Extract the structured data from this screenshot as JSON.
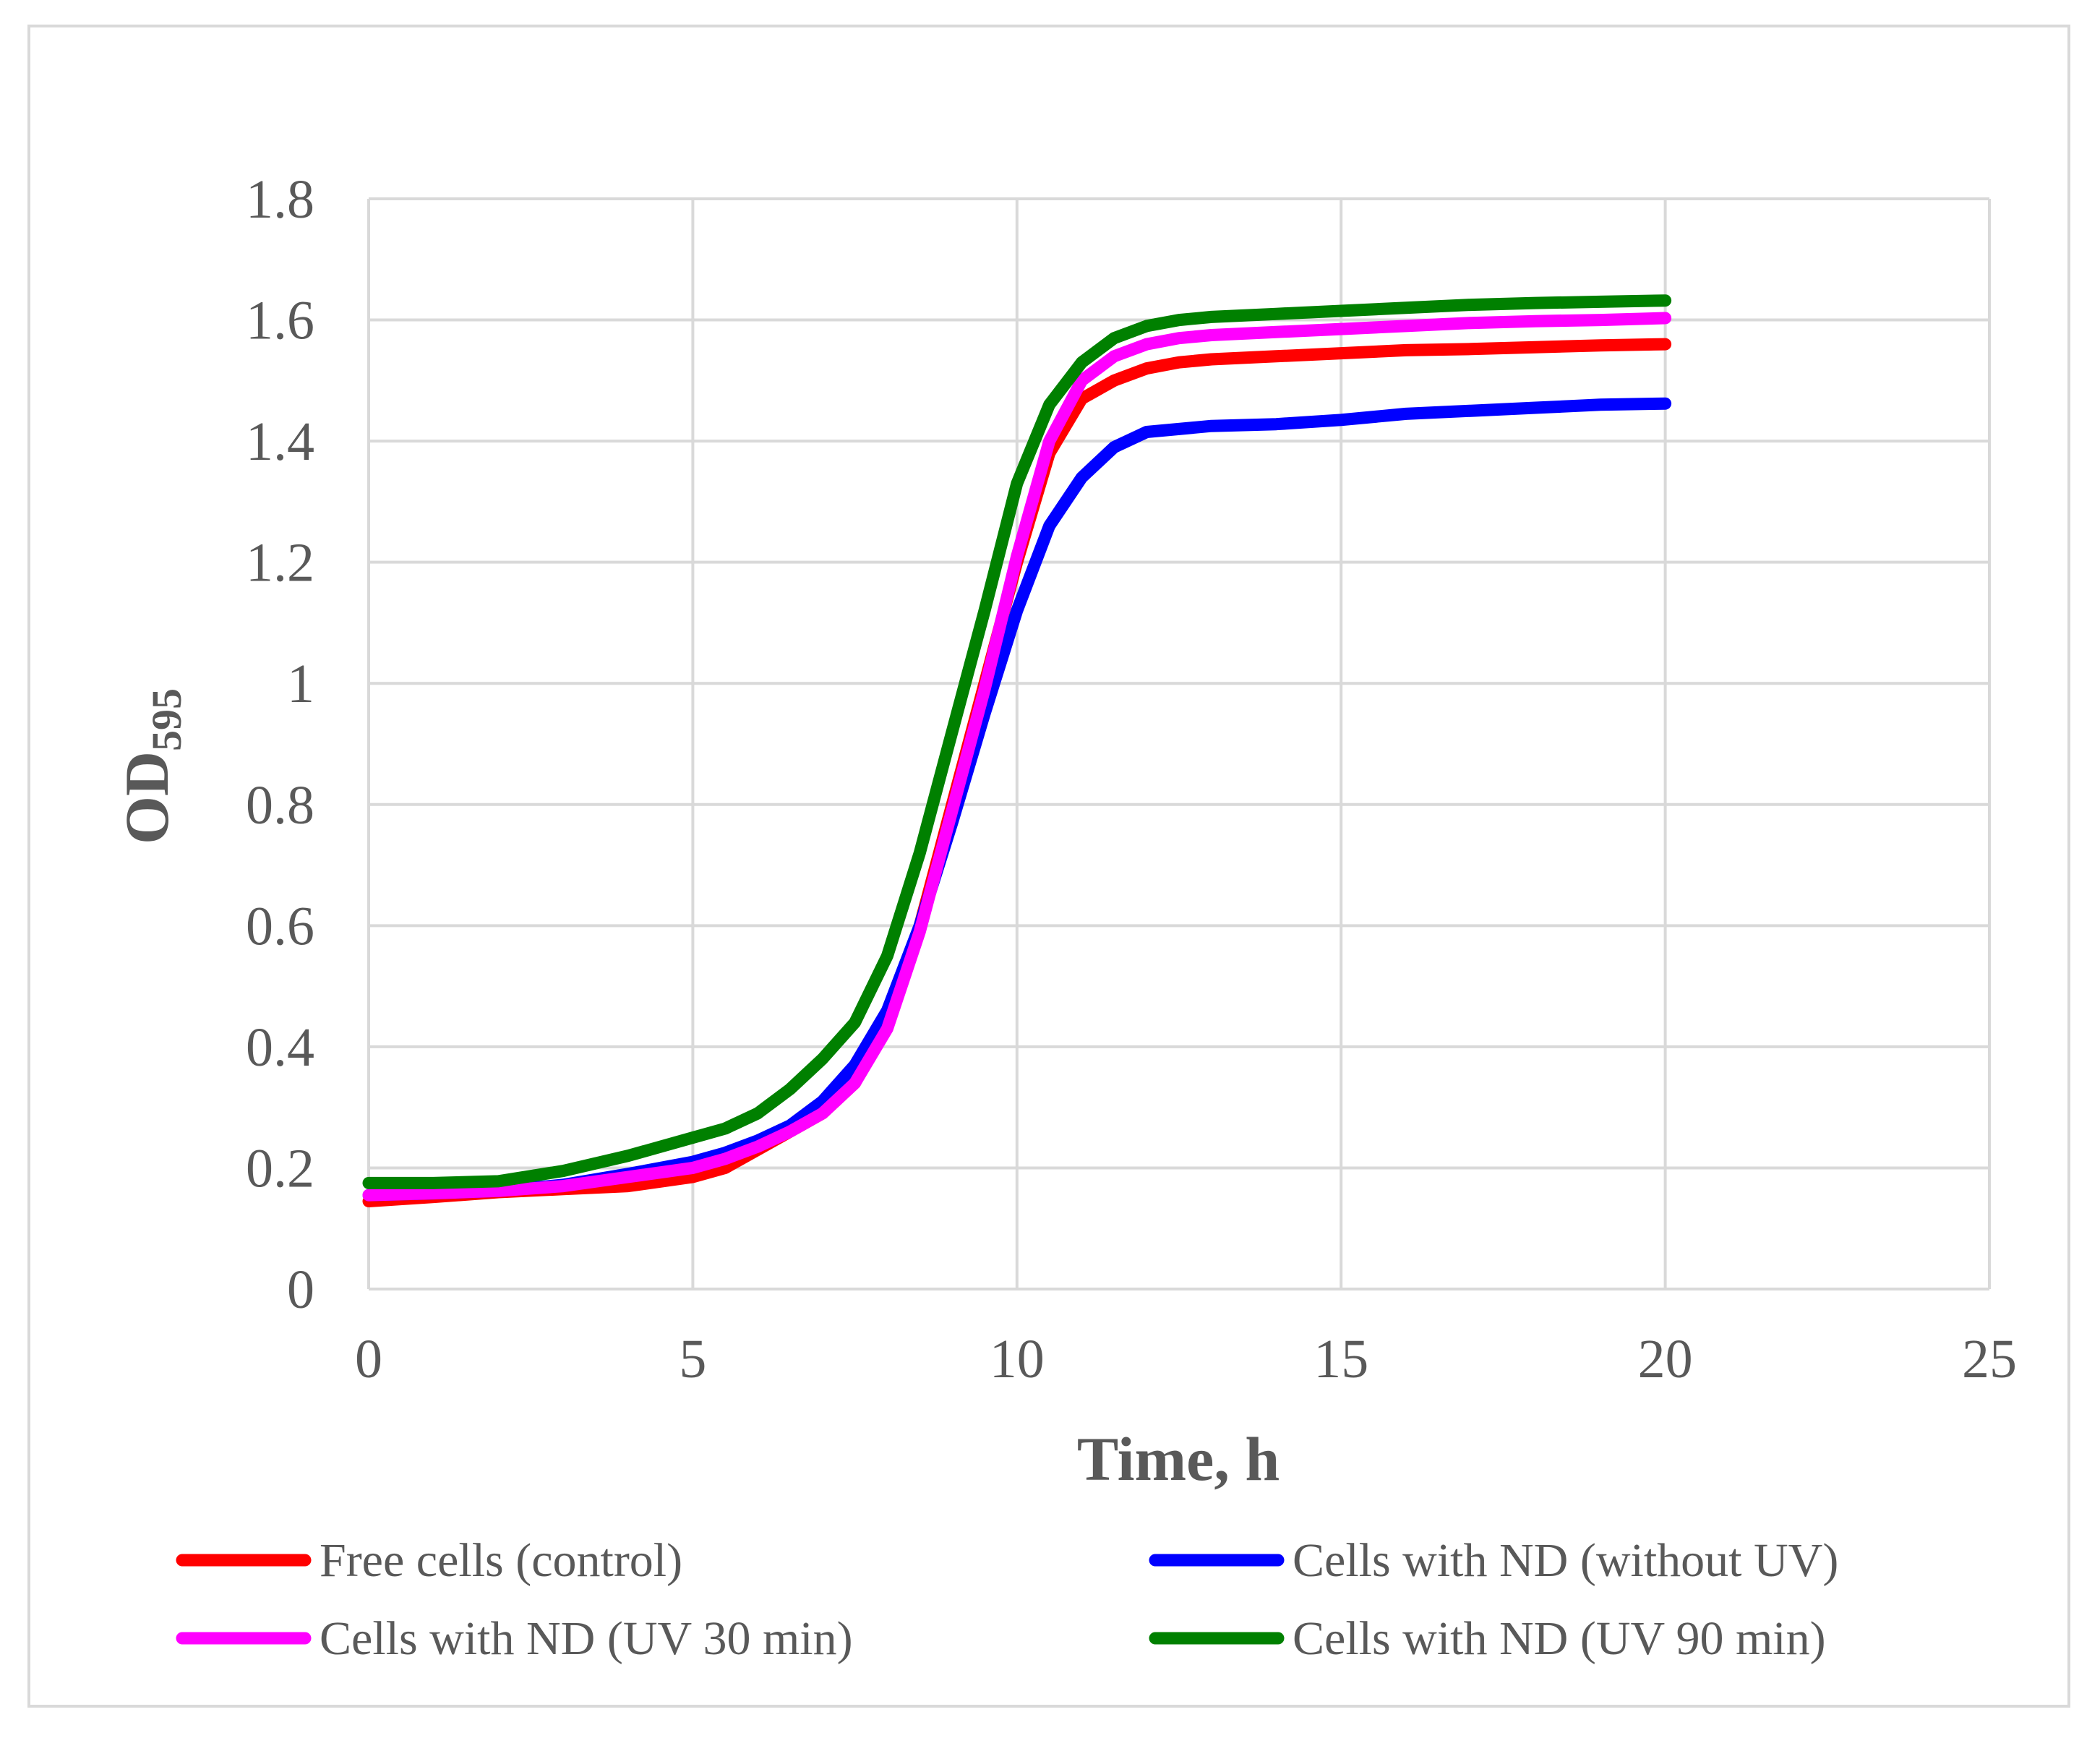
{
  "chart_data": {
    "type": "line",
    "title": "",
    "xlabel": "Time, h",
    "ylabel_main": "OD",
    "ylabel_sub": "595",
    "xlim": [
      0,
      25
    ],
    "ylim": [
      0,
      1.8
    ],
    "xticks": [
      "0",
      "5",
      "10",
      "15",
      "20",
      "25"
    ],
    "yticks": [
      "0",
      "0.2",
      "0.4",
      "0.6",
      "0.8",
      "1",
      "1.2",
      "1.4",
      "1.6",
      "1.8"
    ],
    "grid": true,
    "legend_position": "bottom",
    "series": [
      {
        "name": "Free cells (control)",
        "color": "#ff0000",
        "x": [
          0,
          1,
          2,
          3,
          4,
          5,
          5.5,
          6,
          6.5,
          7,
          7.5,
          8,
          8.5,
          9,
          9.5,
          10,
          10.5,
          11,
          11.5,
          12,
          12.5,
          13,
          14,
          15,
          16,
          17,
          18,
          19,
          20
        ],
        "y": [
          0.145,
          0.152,
          0.16,
          0.165,
          0.17,
          0.185,
          0.2,
          0.23,
          0.26,
          0.29,
          0.34,
          0.44,
          0.6,
          0.8,
          1.0,
          1.2,
          1.38,
          1.47,
          1.5,
          1.52,
          1.53,
          1.535,
          1.54,
          1.545,
          1.55,
          1.552,
          1.555,
          1.558,
          1.56
        ]
      },
      {
        "name": "Cells with ND (without UV)",
        "color": "#0000ff",
        "x": [
          0,
          1,
          2,
          3,
          4,
          5,
          5.5,
          6,
          6.5,
          7,
          7.5,
          8,
          8.5,
          9,
          9.5,
          10,
          10.5,
          11,
          11.5,
          12,
          12.5,
          13,
          14,
          15,
          16,
          17,
          18,
          19,
          20
        ],
        "y": [
          0.155,
          0.158,
          0.162,
          0.172,
          0.19,
          0.21,
          0.225,
          0.245,
          0.27,
          0.31,
          0.37,
          0.46,
          0.6,
          0.77,
          0.95,
          1.12,
          1.26,
          1.34,
          1.39,
          1.415,
          1.42,
          1.425,
          1.428,
          1.435,
          1.445,
          1.45,
          1.455,
          1.46,
          1.462
        ]
      },
      {
        "name": "Cells with ND (UV 30 min)",
        "color": "#ff00ff",
        "x": [
          0,
          1,
          2,
          3,
          4,
          5,
          5.5,
          6,
          6.5,
          7,
          7.5,
          8,
          8.5,
          9,
          9.5,
          10,
          10.5,
          11,
          11.5,
          12,
          12.5,
          13,
          14,
          15,
          16,
          17,
          18,
          19,
          20
        ],
        "y": [
          0.155,
          0.158,
          0.162,
          0.17,
          0.185,
          0.2,
          0.215,
          0.235,
          0.26,
          0.29,
          0.34,
          0.43,
          0.59,
          0.79,
          0.99,
          1.21,
          1.4,
          1.5,
          1.54,
          1.56,
          1.57,
          1.575,
          1.58,
          1.585,
          1.59,
          1.595,
          1.598,
          1.6,
          1.603
        ]
      },
      {
        "name": "Cells with ND (UV 90 min)",
        "color": "#008000",
        "x": [
          0,
          1,
          2,
          3,
          4,
          5,
          5.5,
          6,
          6.5,
          7,
          7.5,
          8,
          8.5,
          9,
          9.5,
          10,
          10.5,
          11,
          11.5,
          12,
          12.5,
          13,
          14,
          15,
          16,
          17,
          18,
          19,
          20
        ],
        "y": [
          0.175,
          0.175,
          0.178,
          0.195,
          0.22,
          0.25,
          0.265,
          0.29,
          0.33,
          0.38,
          0.44,
          0.55,
          0.72,
          0.92,
          1.12,
          1.33,
          1.46,
          1.53,
          1.57,
          1.59,
          1.6,
          1.605,
          1.61,
          1.615,
          1.62,
          1.625,
          1.628,
          1.63,
          1.632
        ]
      }
    ]
  }
}
